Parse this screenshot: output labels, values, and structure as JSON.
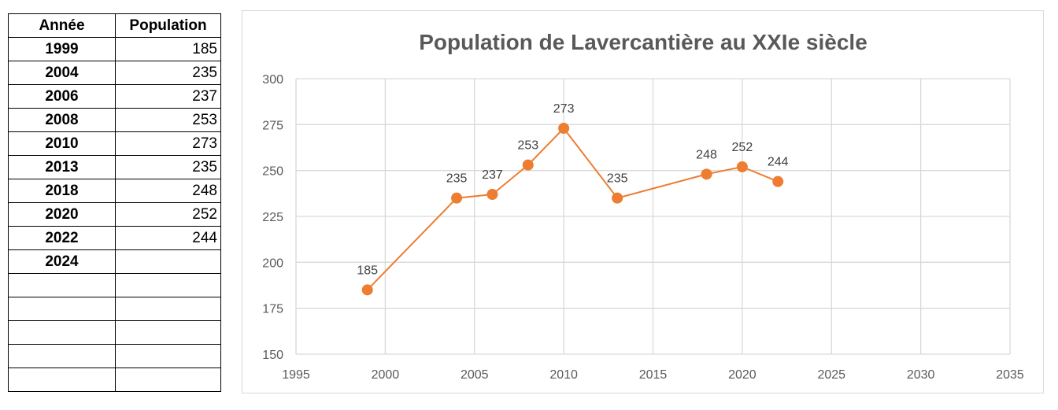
{
  "table": {
    "headers": [
      "Année",
      "Population"
    ],
    "rows": [
      {
        "year": "1999",
        "pop": "185"
      },
      {
        "year": "2004",
        "pop": "235"
      },
      {
        "year": "2006",
        "pop": "237"
      },
      {
        "year": "2008",
        "pop": "253"
      },
      {
        "year": "2010",
        "pop": "273"
      },
      {
        "year": "2013",
        "pop": "235"
      },
      {
        "year": "2018",
        "pop": "248"
      },
      {
        "year": "2020",
        "pop": "252"
      },
      {
        "year": "2022",
        "pop": "244"
      },
      {
        "year": "2024",
        "pop": ""
      },
      {
        "year": "",
        "pop": ""
      },
      {
        "year": "",
        "pop": ""
      },
      {
        "year": "",
        "pop": ""
      },
      {
        "year": "",
        "pop": ""
      },
      {
        "year": "",
        "pop": ""
      }
    ]
  },
  "chart_data": {
    "type": "scatter",
    "title": "Population de Lavercantière au XXIe siècle",
    "xlabel": "",
    "ylabel": "",
    "xlim": [
      1995,
      2035
    ],
    "ylim": [
      150,
      300
    ],
    "x_ticks": [
      1995,
      2000,
      2005,
      2010,
      2015,
      2020,
      2025,
      2030,
      2035
    ],
    "y_ticks": [
      150,
      175,
      200,
      225,
      250,
      275,
      300
    ],
    "grid": true,
    "legend": "none",
    "line_color": "#ED7D31",
    "series": [
      {
        "x": [
          1999,
          2004,
          2006,
          2008,
          2010,
          2013,
          2018,
          2020,
          2022
        ],
        "y": [
          185,
          235,
          237,
          253,
          273,
          235,
          248,
          252,
          244
        ],
        "labels": [
          "185",
          "235",
          "237",
          "253",
          "273",
          "235",
          "248",
          "252",
          "244"
        ]
      }
    ]
  }
}
